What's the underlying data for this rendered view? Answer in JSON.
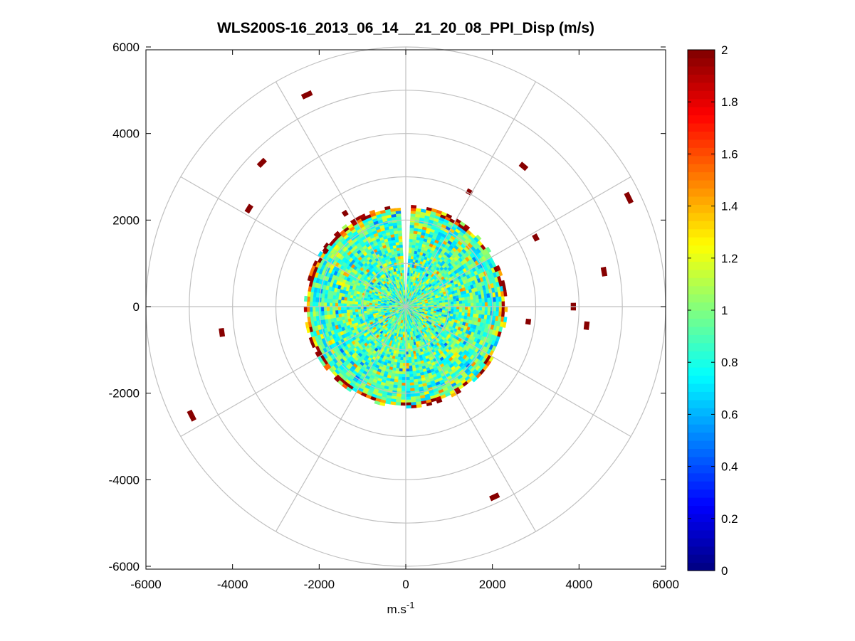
{
  "chart_data": {
    "type": "heatmap",
    "subtype": "polar-ppi",
    "title": "WLS200S-16_2013_06_14__21_20_08_PPI_Disp (m/s)",
    "xlabel": "m.s",
    "xlabel_superscript": "-1",
    "ylabel": "",
    "xlim": [
      -6000,
      6000
    ],
    "ylim": [
      -6000,
      6000
    ],
    "xticks": [
      -6000,
      -4000,
      -2000,
      0,
      2000,
      4000,
      6000
    ],
    "yticks": [
      6000,
      4000,
      2000,
      0,
      -2000,
      -4000,
      -6000
    ],
    "polar_grid": {
      "range_rings": [
        1000,
        2000,
        3000,
        4000,
        5000,
        6000
      ],
      "spoke_angles_deg": [
        0,
        30,
        60,
        90,
        120,
        150,
        180,
        210,
        240,
        270,
        300,
        330
      ],
      "grid_color": "#c0c0c0"
    },
    "colorbar": {
      "colormap": "jet",
      "clim": [
        0,
        2
      ],
      "ticks": [
        0,
        0.2,
        0.4,
        0.6,
        0.8,
        1,
        1.2,
        1.4,
        1.6,
        1.8,
        2
      ],
      "tick_labels": [
        "0",
        "0.2",
        "0.4",
        "0.6",
        "0.8",
        "1",
        "1.2",
        "1.4",
        "1.6",
        "1.8",
        "2"
      ],
      "n_colors": 64
    },
    "dense_field": {
      "max_range": 2350,
      "gap_azimuth_deg": [
        357,
        3
      ],
      "typical_value": 0.9,
      "edge_value": 1.9,
      "inner_distribution": "mostly 0.7 to 1.2, noisy"
    },
    "isolated_gates": [
      {
        "range": 5400,
        "azimuth_deg": 335,
        "value": 2
      },
      {
        "range": 4700,
        "azimuth_deg": 315,
        "value": 2
      },
      {
        "range": 4230,
        "azimuth_deg": 40,
        "value": 2
      },
      {
        "range": 5730,
        "azimuth_deg": 64,
        "value": 2
      },
      {
        "range": 3400,
        "azimuth_deg": 62,
        "value": 2
      },
      {
        "range": 4650,
        "azimuth_deg": 80,
        "value": 2
      },
      {
        "range": 3870,
        "azimuth_deg": 90,
        "value": 2
      },
      {
        "range": 4200,
        "azimuth_deg": 96,
        "value": 2
      },
      {
        "range": 2850,
        "azimuth_deg": 97,
        "value": 2
      },
      {
        "range": 4850,
        "azimuth_deg": 155,
        "value": 2
      },
      {
        "range": 5550,
        "azimuth_deg": 243,
        "value": 2
      },
      {
        "range": 4290,
        "azimuth_deg": 262,
        "value": 2
      },
      {
        "range": 4270,
        "azimuth_deg": 302,
        "value": 2
      },
      {
        "range": 2570,
        "azimuth_deg": 327,
        "value": 2
      },
      {
        "range": 2260,
        "azimuth_deg": 305,
        "value": 2
      },
      {
        "range": 3030,
        "azimuth_deg": 29,
        "value": 2
      }
    ],
    "colors": {
      "axes_background": "#ffffff",
      "grid": "#c0c0c0",
      "axis_line": "#000000"
    }
  }
}
